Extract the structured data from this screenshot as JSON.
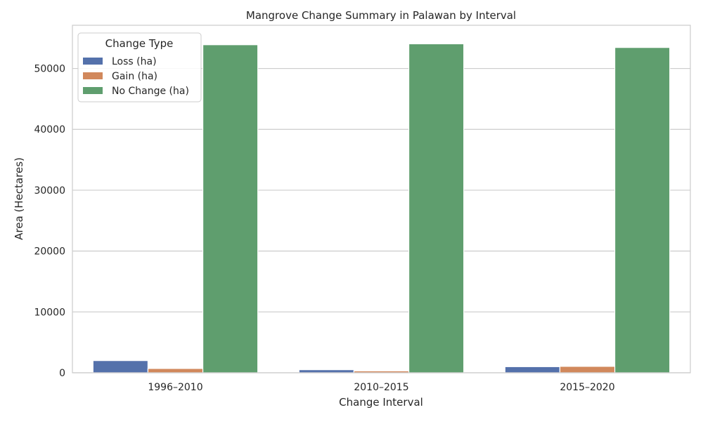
{
  "chart_data": {
    "type": "bar",
    "title": "Mangrove Change Summary in Palawan by Interval",
    "xlabel": "Change Interval",
    "ylabel": "Area (Hectares)",
    "categories": [
      "1996–2010",
      "2010–2015",
      "2015–2020"
    ],
    "series": [
      {
        "name": "Loss (ha)",
        "color": "#5471ab",
        "values": [
          2000,
          500,
          1000
        ]
      },
      {
        "name": "Gain (ha)",
        "color": "#d1885c",
        "values": [
          700,
          300,
          1050
        ]
      },
      {
        "name": "No Change (ha)",
        "color": "#5f9e6e",
        "values": [
          53900,
          54050,
          53450
        ]
      }
    ],
    "ylim": [
      0,
      57100
    ],
    "yticks": [
      0,
      10000,
      20000,
      30000,
      40000,
      50000
    ],
    "grid": true,
    "legend": {
      "title": "Change Type",
      "placement": "top-left"
    }
  }
}
